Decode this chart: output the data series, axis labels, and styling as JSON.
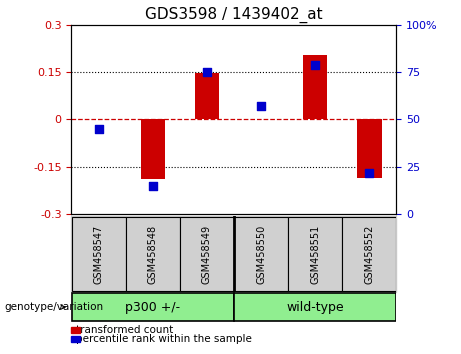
{
  "title": "GDS3598 / 1439402_at",
  "samples": [
    "GSM458547",
    "GSM458548",
    "GSM458549",
    "GSM458550",
    "GSM458551",
    "GSM458552"
  ],
  "red_bars": [
    0.002,
    -0.19,
    0.148,
    0.002,
    0.205,
    -0.185
  ],
  "blue_dots_pct": [
    45,
    15,
    75,
    57,
    79,
    22
  ],
  "ylim_left": [
    -0.3,
    0.3
  ],
  "ylim_right": [
    0,
    100
  ],
  "yticks_left": [
    -0.3,
    -0.15,
    0,
    0.15,
    0.3
  ],
  "yticks_right": [
    0,
    25,
    50,
    75,
    100
  ],
  "ytick_labels_left": [
    "-0.3",
    "-0.15",
    "0",
    "0.15",
    "0.3"
  ],
  "ytick_labels_right": [
    "0",
    "25",
    "50",
    "75",
    "100%"
  ],
  "group_label_prefix": "genotype/variation",
  "group1_label": "p300 +/-",
  "group2_label": "wild-type",
  "bar_color": "#CC0000",
  "dot_color": "#0000CC",
  "hline_color": "#CC0000",
  "dot_gridline_color": "#000000",
  "bg_plot": "white",
  "bg_label_area": "#C8C8C8",
  "bg_genotype": "#90EE90",
  "legend_red_label": "transformed count",
  "legend_blue_label": "percentile rank within the sample",
  "bar_width": 0.45,
  "dot_size": 30,
  "title_fontsize": 11,
  "tick_fontsize": 8,
  "sample_fontsize": 7,
  "geno_fontsize": 9,
  "legend_fontsize": 7.5
}
